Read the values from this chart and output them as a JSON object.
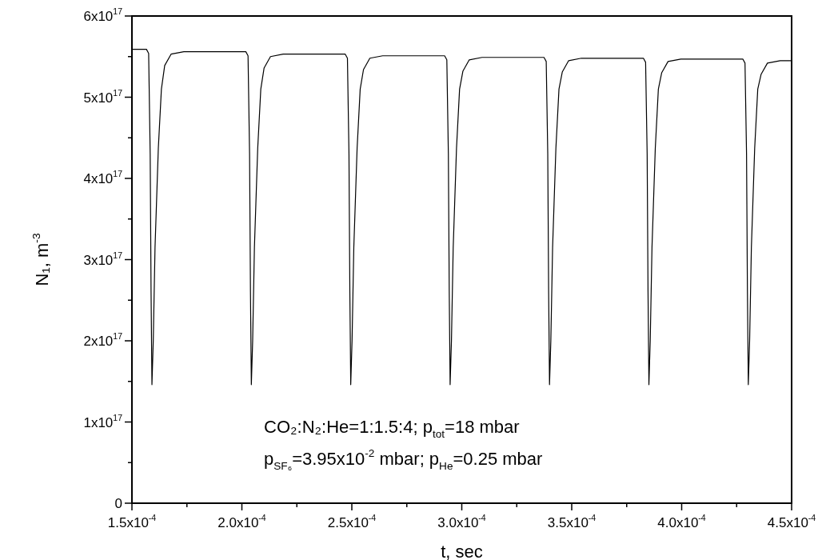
{
  "chart_data": {
    "type": "line",
    "xlabel": "t, sec",
    "ylabel": "N₁, m$^{-3}$",
    "x": [
      0.00015,
      0.0001566,
      0.0001576,
      0.0001583,
      0.0001587,
      0.0001591,
      0.0001597,
      0.0001605,
      0.000162,
      0.0001634,
      0.0001649,
      0.0001678,
      0.0001736,
      0.00019,
      0.0002018,
      0.0002028,
      0.0002035,
      0.0002039,
      0.0002043,
      0.0002049,
      0.0002057,
      0.0002072,
      0.0002086,
      0.0002101,
      0.000213,
      0.0002188,
      0.000235,
      0.000247,
      0.000248,
      0.0002487,
      0.0002491,
      0.0002495,
      0.0002501,
      0.0002509,
      0.0002524,
      0.0002538,
      0.0002553,
      0.0002582,
      0.000264,
      0.00028,
      0.0002922,
      0.0002932,
      0.0002939,
      0.0002943,
      0.0002947,
      0.0002953,
      0.0002961,
      0.0002976,
      0.000299,
      0.0003005,
      0.0003034,
      0.0003092,
      0.000325,
      0.0003374,
      0.0003384,
      0.0003391,
      0.0003395,
      0.0003399,
      0.0003405,
      0.0003413,
      0.0003428,
      0.0003442,
      0.0003457,
      0.0003486,
      0.0003544,
      0.00037,
      0.0003826,
      0.0003836,
      0.0003843,
      0.0003847,
      0.0003851,
      0.0003857,
      0.0003865,
      0.000388,
      0.0003894,
      0.0003909,
      0.0003938,
      0.0003996,
      0.000415,
      0.0004278,
      0.0004288,
      0.0004295,
      0.0004299,
      0.0004303,
      0.0004309,
      0.0004317,
      0.0004332,
      0.0004346,
      0.0004361,
      0.000439,
      0.0004448,
      0.00045
    ],
    "values": [
      5.59e+17,
      5.59e+17,
      5.54e+17,
      4.3e+17,
      2.6e+17,
      1.46e+17,
      2e+17,
      3.15e+17,
      4.37e+17,
      5.1e+17,
      5.39e+17,
      5.53e+17,
      5.56e+17,
      5.56e+17,
      5.56e+17,
      5.51e+17,
      4.3e+17,
      2.6e+17,
      1.46e+17,
      2e+17,
      3.15e+17,
      4.37e+17,
      5.1e+17,
      5.36e+17,
      5.5e+17,
      5.53e+17,
      5.53e+17,
      5.53e+17,
      5.48e+17,
      4.3e+17,
      2.6e+17,
      1.46e+17,
      2e+17,
      3.15e+17,
      4.37e+17,
      5.1e+17,
      5.34e+17,
      5.48e+17,
      5.51e+17,
      5.51e+17,
      5.51e+17,
      5.46e+17,
      4.3e+17,
      2.6e+17,
      1.46e+17,
      2e+17,
      3.15e+17,
      4.37e+17,
      5.1e+17,
      5.32e+17,
      5.46e+17,
      5.49e+17,
      5.49e+17,
      5.49e+17,
      5.44e+17,
      4.3e+17,
      2.6e+17,
      1.46e+17,
      2e+17,
      3.15e+17,
      4.37e+17,
      5.1e+17,
      5.31e+17,
      5.45e+17,
      5.48e+17,
      5.48e+17,
      5.48e+17,
      5.43e+17,
      4.3e+17,
      2.6e+17,
      1.46e+17,
      2e+17,
      3.15e+17,
      4.37e+17,
      5.1e+17,
      5.3e+17,
      5.44e+17,
      5.47e+17,
      5.47e+17,
      5.47e+17,
      5.42e+17,
      4.3e+17,
      2.6e+17,
      1.46e+17,
      2e+17,
      3.15e+17,
      4.37e+17,
      5.1e+17,
      5.28e+17,
      5.42e+17,
      5.45e+17,
      5.45e+17
    ],
    "color": "#000000",
    "xlim": [
      0.00015,
      0.00045
    ],
    "xticks": [
      {
        "value": 0.00015,
        "label": "1.5x10$^{-4}$"
      },
      {
        "value": 0.000175,
        "label": null
      },
      {
        "value": 0.0002,
        "label": "2.0x10$^{-4}$"
      },
      {
        "value": 0.000225,
        "label": null
      },
      {
        "value": 0.00025,
        "label": "2.5x10$^{-4}$"
      },
      {
        "value": 0.000275,
        "label": null
      },
      {
        "value": 0.0003,
        "label": "3.0x10$^{-4}$"
      },
      {
        "value": 0.000325,
        "label": null
      },
      {
        "value": 0.00035,
        "label": "3.5x10$^{-4}$"
      },
      {
        "value": 0.000375,
        "label": null
      },
      {
        "value": 0.0004,
        "label": "4.0x10$^{-4}$"
      },
      {
        "value": 0.000425,
        "label": null
      },
      {
        "value": 0.00045,
        "label": "4.5x10$^{-4}$"
      }
    ],
    "ylim": [
      0,
      6e+17
    ],
    "yticks": [
      0,
      {
        "value": 5e+16,
        "label": null
      },
      {
        "value": 1e+17,
        "label": "1x10$^{17}$"
      },
      {
        "value": 1.5e+17,
        "label": null
      },
      {
        "value": 2e+17,
        "label": "2x10$^{17}$"
      },
      {
        "value": 2.5e+17,
        "label": null
      },
      {
        "value": 3e+17,
        "label": "3x10$^{17}$"
      },
      {
        "value": 3.5e+17,
        "label": null
      },
      {
        "value": 4e+17,
        "label": "4x10$^{17}$"
      },
      {
        "value": 4.5e+17,
        "label": null
      },
      {
        "value": 5e+17,
        "label": "5x10$^{17}$"
      },
      {
        "value": 5.5e+17,
        "label": null
      },
      {
        "value": 6e+17,
        "label": "6x10$^{17}$"
      }
    ],
    "annotations": [
      "CO₂:N₂:He=1:1.5:4; p$_{tot}$=18 mbar",
      "p$_{SF₆}$=3.95x10$^{-2}$ mbar; p$_{He}$=0.25 mbar"
    ],
    "grid": false,
    "legend": false,
    "marker": "none",
    "line_style": "solid"
  }
}
